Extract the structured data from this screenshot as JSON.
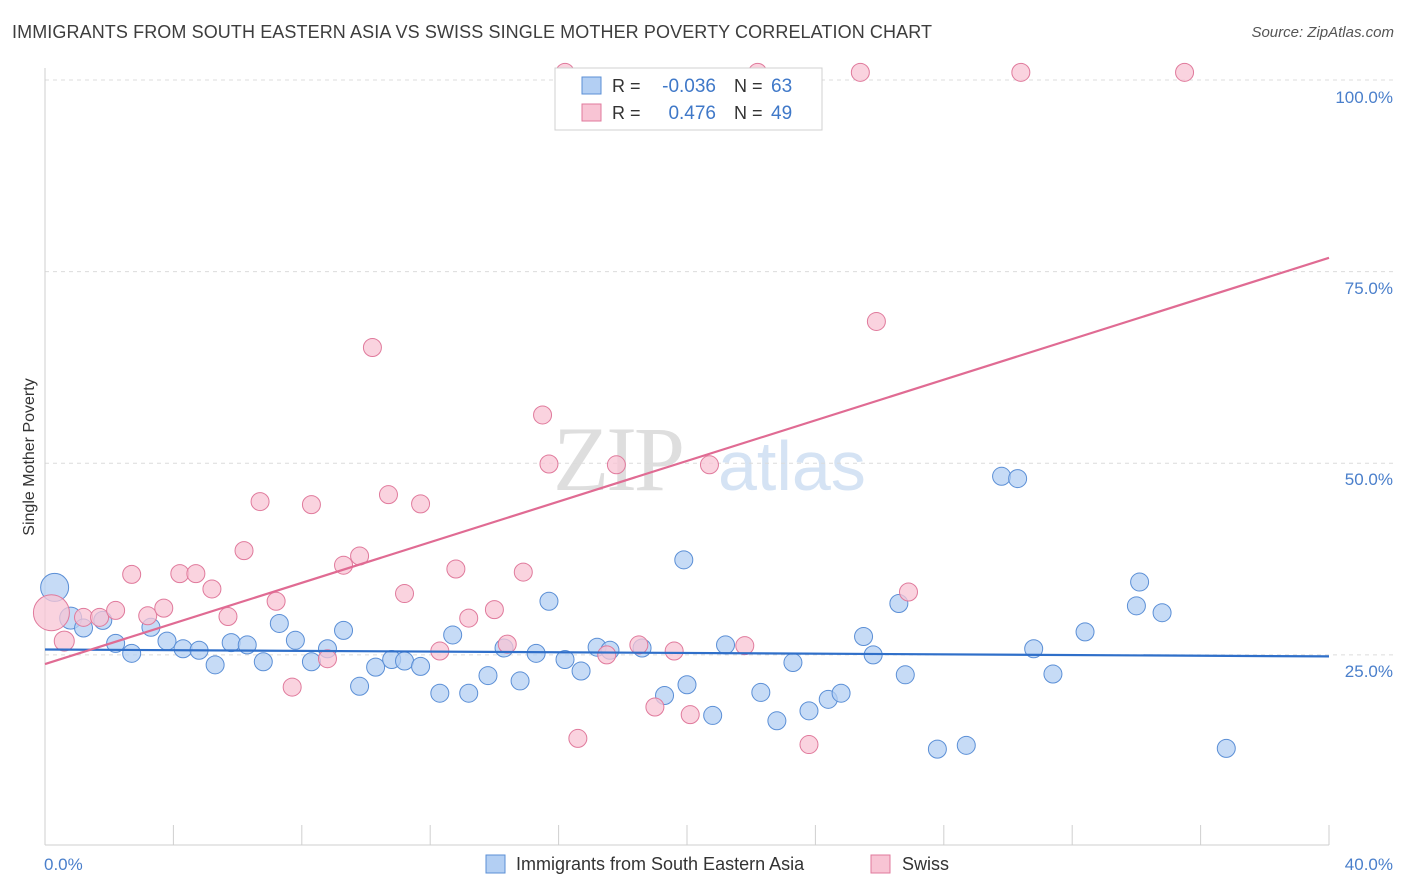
{
  "chart_data": {
    "type": "scatter",
    "title": "IMMIGRANTS FROM SOUTH EASTERN ASIA VS SWISS SINGLE MOTHER POVERTY CORRELATION CHART",
    "source": "Source: ZipAtlas.com",
    "ylabel": "Single Mother Poverty",
    "xlabel": "",
    "xlim": [
      0,
      40
    ],
    "ylim": [
      0,
      102
    ],
    "x_tick_labels": [
      "0.0%",
      "40.0%"
    ],
    "y_ticks": [
      25,
      50,
      75,
      100
    ],
    "y_tick_labels": [
      "25.0%",
      "50.0%",
      "75.0%",
      "100.0%"
    ],
    "watermark": {
      "zip": "ZIP",
      "atlas": "atlas"
    },
    "legend_stats": [
      {
        "r_label": "R =",
        "r_value": "-0.036",
        "n_label": "N =",
        "n_value": "63"
      },
      {
        "r_label": "R =",
        "r_value": "0.476",
        "n_label": "N =",
        "n_value": "49"
      }
    ],
    "series": [
      {
        "name": "Immigrants from South Eastern Asia",
        "color": "#5b8fd6",
        "fill": "#b3cff3",
        "trend": {
          "x": [
            0,
            40
          ],
          "y": [
            25.7,
            24.8
          ]
        },
        "points": [
          [
            0.3,
            33.8,
            14
          ],
          [
            0.8,
            29.8,
            11
          ],
          [
            1.2,
            28.5,
            9
          ],
          [
            1.8,
            29.5,
            9
          ],
          [
            2.2,
            26.5,
            9
          ],
          [
            2.7,
            25.2,
            9
          ],
          [
            3.3,
            28.6,
            9
          ],
          [
            3.8,
            26.8,
            9
          ],
          [
            4.3,
            25.8,
            9
          ],
          [
            4.8,
            25.6,
            9
          ],
          [
            5.3,
            23.7,
            9
          ],
          [
            5.8,
            26.6,
            9
          ],
          [
            6.3,
            26.3,
            9
          ],
          [
            6.8,
            24.1,
            9
          ],
          [
            7.3,
            29.1,
            9
          ],
          [
            7.8,
            26.9,
            9
          ],
          [
            8.3,
            24.1,
            9
          ],
          [
            8.8,
            25.8,
            9
          ],
          [
            9.3,
            28.2,
            9
          ],
          [
            9.8,
            20.9,
            9
          ],
          [
            10.3,
            23.4,
            9
          ],
          [
            10.8,
            24.4,
            9
          ],
          [
            11.2,
            24.2,
            9
          ],
          [
            11.7,
            23.5,
            9
          ],
          [
            12.3,
            20.0,
            9
          ],
          [
            12.7,
            27.6,
            9
          ],
          [
            13.2,
            20.0,
            9
          ],
          [
            13.8,
            22.3,
            9
          ],
          [
            14.3,
            25.9,
            9
          ],
          [
            14.8,
            21.6,
            9
          ],
          [
            15.3,
            25.2,
            9
          ],
          [
            15.7,
            32.0,
            9
          ],
          [
            16.2,
            24.4,
            9
          ],
          [
            16.7,
            22.9,
            9
          ],
          [
            17.2,
            26.0,
            9
          ],
          [
            17.6,
            25.6,
            9
          ],
          [
            18.6,
            25.9,
            9
          ],
          [
            19.3,
            19.7,
            9
          ],
          [
            19.9,
            37.4,
            9
          ],
          [
            20.0,
            21.1,
            9
          ],
          [
            20.8,
            17.1,
            9
          ],
          [
            21.2,
            26.3,
            9
          ],
          [
            22.3,
            20.1,
            9
          ],
          [
            22.8,
            16.4,
            9
          ],
          [
            23.3,
            24.0,
            9
          ],
          [
            23.8,
            17.7,
            9
          ],
          [
            24.4,
            19.2,
            9
          ],
          [
            24.8,
            20.0,
            9
          ],
          [
            25.5,
            27.4,
            9
          ],
          [
            25.8,
            25.0,
            9
          ],
          [
            26.6,
            31.7,
            9
          ],
          [
            26.8,
            22.4,
            9
          ],
          [
            27.8,
            12.7,
            9
          ],
          [
            28.7,
            13.2,
            9
          ],
          [
            29.8,
            48.3,
            9
          ],
          [
            30.3,
            48.0,
            9
          ],
          [
            30.8,
            25.8,
            9
          ],
          [
            31.4,
            22.5,
            9
          ],
          [
            32.4,
            28.0,
            9
          ],
          [
            34.0,
            31.4,
            9
          ],
          [
            34.1,
            34.5,
            9
          ],
          [
            34.8,
            30.5,
            9
          ],
          [
            36.8,
            12.8,
            9
          ]
        ]
      },
      {
        "name": "Swiss",
        "color": "#e07a9c",
        "fill": "#f8c4d4",
        "trend": {
          "x": [
            0,
            40
          ],
          "y": [
            23.8,
            76.8
          ]
        },
        "points": [
          [
            0.2,
            30.5,
            18
          ],
          [
            0.6,
            26.8,
            10
          ],
          [
            1.2,
            29.9,
            9
          ],
          [
            1.7,
            29.9,
            9
          ],
          [
            2.2,
            30.8,
            9
          ],
          [
            2.7,
            35.5,
            9
          ],
          [
            3.2,
            30.1,
            9
          ],
          [
            3.7,
            31.1,
            9
          ],
          [
            4.2,
            35.6,
            9
          ],
          [
            4.7,
            35.6,
            9
          ],
          [
            5.2,
            33.6,
            9
          ],
          [
            5.7,
            30.0,
            9
          ],
          [
            6.2,
            38.6,
            9
          ],
          [
            6.7,
            45.0,
            9
          ],
          [
            7.2,
            32.0,
            9
          ],
          [
            7.7,
            20.8,
            9
          ],
          [
            8.3,
            44.6,
            9
          ],
          [
            8.8,
            24.5,
            9
          ],
          [
            9.3,
            36.7,
            9
          ],
          [
            9.8,
            37.9,
            9
          ],
          [
            10.2,
            65.1,
            9
          ],
          [
            10.7,
            45.9,
            9
          ],
          [
            11.2,
            33.0,
            9
          ],
          [
            11.7,
            44.7,
            9
          ],
          [
            12.3,
            25.5,
            9
          ],
          [
            12.8,
            36.2,
            9
          ],
          [
            13.2,
            29.8,
            9
          ],
          [
            14.0,
            30.9,
            9
          ],
          [
            14.4,
            26.4,
            9
          ],
          [
            14.9,
            35.8,
            9
          ],
          [
            15.5,
            56.3,
            9
          ],
          [
            15.7,
            49.9,
            9
          ],
          [
            16.2,
            101.0,
            9
          ],
          [
            16.6,
            14.1,
            9
          ],
          [
            17.5,
            25.0,
            9
          ],
          [
            17.8,
            49.8,
            9
          ],
          [
            18.5,
            26.3,
            9
          ],
          [
            19.0,
            18.2,
            9
          ],
          [
            19.6,
            25.5,
            9
          ],
          [
            20.1,
            17.2,
            9
          ],
          [
            20.7,
            49.8,
            9
          ],
          [
            21.8,
            26.2,
            9
          ],
          [
            22.2,
            101.0,
            9
          ],
          [
            23.8,
            13.3,
            9
          ],
          [
            25.4,
            101.0,
            9
          ],
          [
            25.9,
            68.5,
            9
          ],
          [
            26.9,
            33.2,
            9
          ],
          [
            30.4,
            101.0,
            9
          ],
          [
            35.5,
            101.0,
            9
          ]
        ]
      }
    ]
  }
}
